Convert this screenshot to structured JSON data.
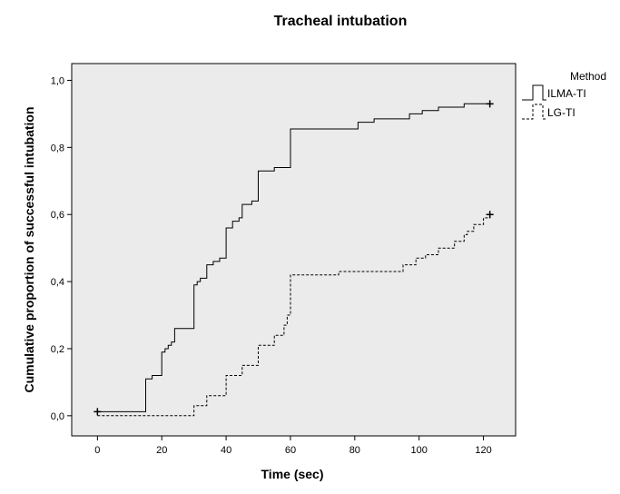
{
  "chart_data": {
    "type": "line",
    "subtype": "step",
    "title": "Tracheal intubation",
    "xlabel": "Time (sec)",
    "ylabel": "Cumulative proportion of successful intubation",
    "xlim": [
      -8,
      130
    ],
    "ylim": [
      -0.06,
      1.05
    ],
    "x_ticks": [
      0,
      20,
      40,
      60,
      80,
      100,
      120
    ],
    "x_tick_labels": [
      "0",
      "20",
      "40",
      "60",
      "80",
      "100",
      "120"
    ],
    "y_ticks": [
      0,
      0.2,
      0.4,
      0.6,
      0.8,
      1.0
    ],
    "y_tick_labels": [
      "0,0",
      "0,2",
      "0,4",
      "0,6",
      "0,8",
      "1,0"
    ],
    "grid": false,
    "background": "#ebebeb",
    "legend": {
      "title": "Method",
      "position": "right"
    },
    "series": [
      {
        "name": "ILMA-TI",
        "style": "solid",
        "color": "#000000",
        "censored_x": [
          0,
          122
        ],
        "points": [
          [
            0,
            0.012
          ],
          [
            15,
            0.012
          ],
          [
            15,
            0.11
          ],
          [
            17,
            0.11
          ],
          [
            17,
            0.12
          ],
          [
            20,
            0.12
          ],
          [
            20,
            0.19
          ],
          [
            21,
            0.19
          ],
          [
            21,
            0.2
          ],
          [
            22,
            0.2
          ],
          [
            22,
            0.21
          ],
          [
            23,
            0.21
          ],
          [
            23,
            0.22
          ],
          [
            24,
            0.22
          ],
          [
            24,
            0.26
          ],
          [
            30,
            0.26
          ],
          [
            30,
            0.39
          ],
          [
            31,
            0.39
          ],
          [
            31,
            0.4
          ],
          [
            32,
            0.4
          ],
          [
            32,
            0.41
          ],
          [
            34,
            0.41
          ],
          [
            34,
            0.45
          ],
          [
            36,
            0.45
          ],
          [
            36,
            0.46
          ],
          [
            38,
            0.46
          ],
          [
            38,
            0.47
          ],
          [
            40,
            0.47
          ],
          [
            40,
            0.56
          ],
          [
            42,
            0.56
          ],
          [
            42,
            0.58
          ],
          [
            44,
            0.58
          ],
          [
            44,
            0.59
          ],
          [
            45,
            0.59
          ],
          [
            45,
            0.63
          ],
          [
            48,
            0.63
          ],
          [
            48,
            0.64
          ],
          [
            50,
            0.64
          ],
          [
            50,
            0.73
          ],
          [
            55,
            0.73
          ],
          [
            55,
            0.74
          ],
          [
            60,
            0.74
          ],
          [
            60,
            0.855
          ],
          [
            81,
            0.855
          ],
          [
            81,
            0.875
          ],
          [
            86,
            0.875
          ],
          [
            86,
            0.885
          ],
          [
            97,
            0.885
          ],
          [
            97,
            0.9
          ],
          [
            101,
            0.9
          ],
          [
            101,
            0.91
          ],
          [
            106,
            0.91
          ],
          [
            106,
            0.92
          ],
          [
            114,
            0.92
          ],
          [
            114,
            0.93
          ],
          [
            122,
            0.93
          ]
        ]
      },
      {
        "name": "LG-TI",
        "style": "dashed",
        "color": "#000000",
        "censored_x": [
          122
        ],
        "points": [
          [
            0,
            0.0
          ],
          [
            30,
            0.0
          ],
          [
            30,
            0.03
          ],
          [
            34,
            0.03
          ],
          [
            34,
            0.06
          ],
          [
            40,
            0.06
          ],
          [
            40,
            0.12
          ],
          [
            45,
            0.12
          ],
          [
            45,
            0.15
          ],
          [
            50,
            0.15
          ],
          [
            50,
            0.21
          ],
          [
            55,
            0.21
          ],
          [
            55,
            0.24
          ],
          [
            58,
            0.24
          ],
          [
            58,
            0.27
          ],
          [
            59,
            0.27
          ],
          [
            59,
            0.3
          ],
          [
            60,
            0.3
          ],
          [
            60,
            0.42
          ],
          [
            75,
            0.42
          ],
          [
            75,
            0.43
          ],
          [
            95,
            0.43
          ],
          [
            95,
            0.45
          ],
          [
            99,
            0.45
          ],
          [
            99,
            0.47
          ],
          [
            102,
            0.47
          ],
          [
            102,
            0.48
          ],
          [
            106,
            0.48
          ],
          [
            106,
            0.5
          ],
          [
            111,
            0.5
          ],
          [
            111,
            0.52
          ],
          [
            114,
            0.52
          ],
          [
            114,
            0.54
          ],
          [
            115,
            0.54
          ],
          [
            115,
            0.55
          ],
          [
            117,
            0.55
          ],
          [
            117,
            0.57
          ],
          [
            120,
            0.57
          ],
          [
            120,
            0.59
          ],
          [
            122,
            0.59
          ],
          [
            122,
            0.6
          ]
        ]
      }
    ]
  }
}
